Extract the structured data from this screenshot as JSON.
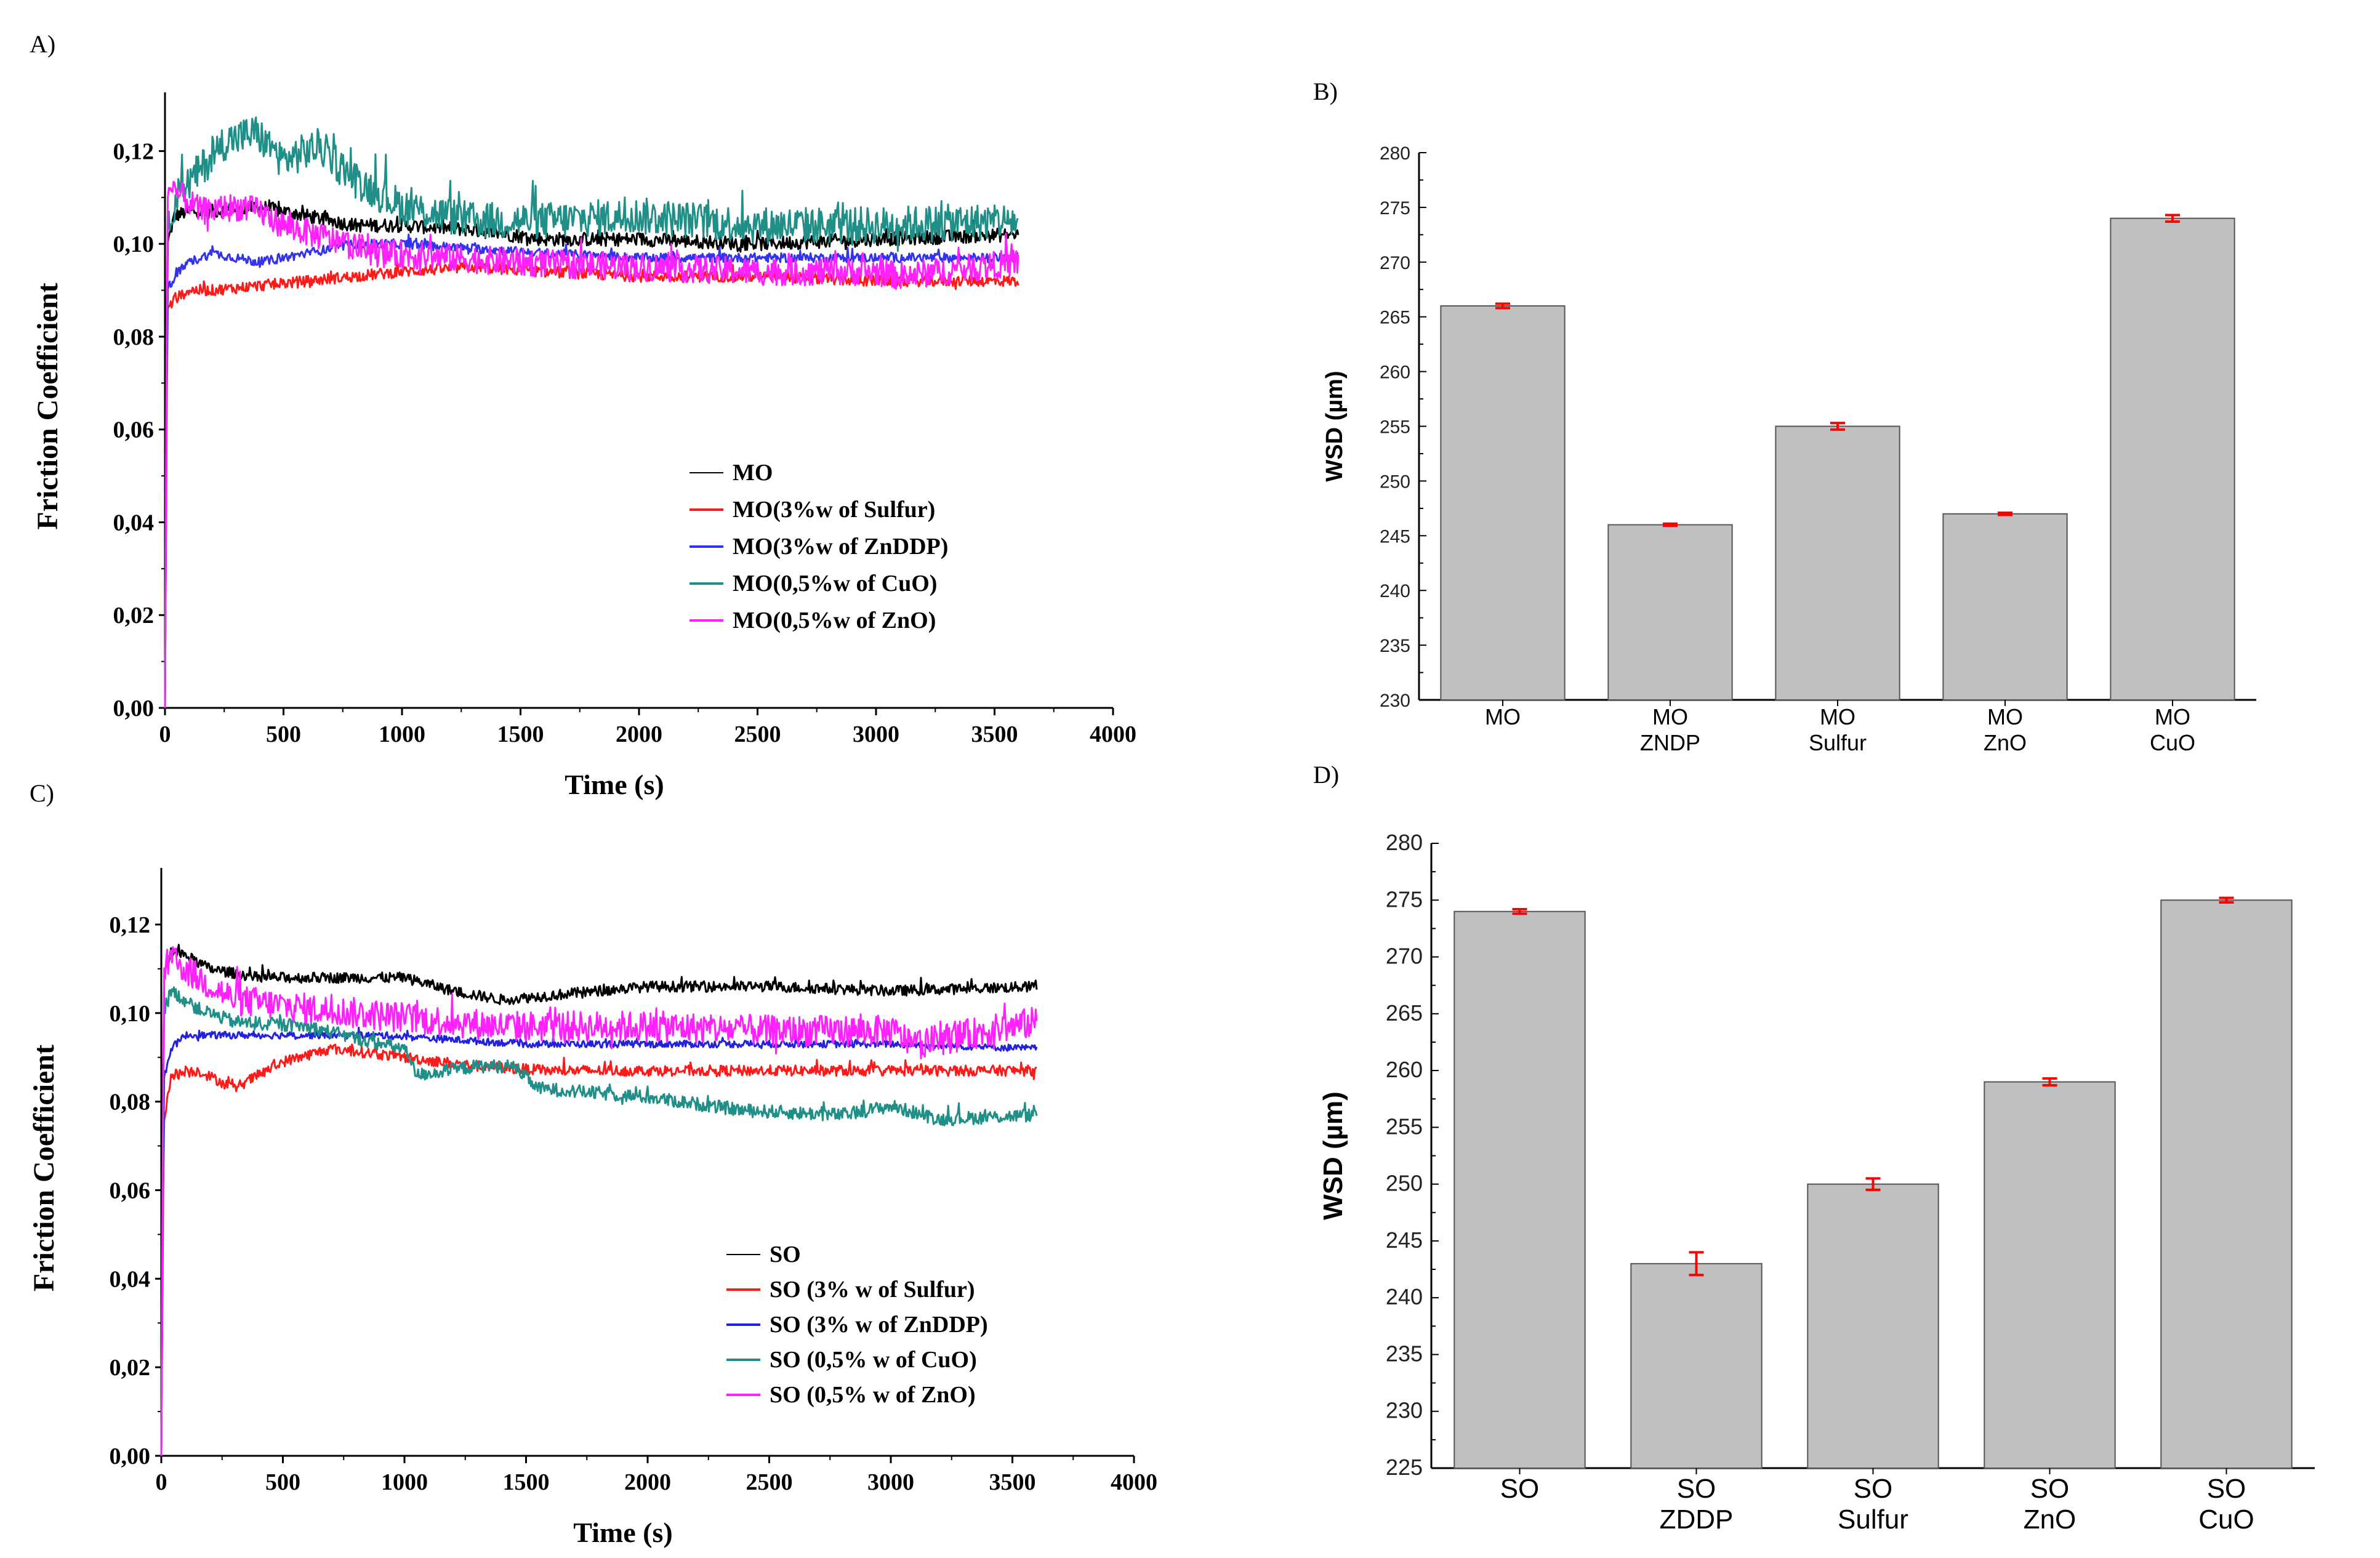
{
  "chart_data": [
    {
      "panel": "A)",
      "type": "line",
      "xlabel": "Time (s)",
      "ylabel": "Friction Coefficient",
      "xlim": [
        0,
        4000
      ],
      "ylim": [
        0,
        0.13
      ],
      "xticks": [
        0,
        500,
        1000,
        1500,
        2000,
        2500,
        3000,
        3500,
        4000
      ],
      "yticks": [
        0,
        0.02,
        0.04,
        0.06,
        0.08,
        0.1,
        0.12
      ],
      "ytick_labels": [
        "0,00",
        "0,02",
        "0,04",
        "0,06",
        "0,08",
        "0,10",
        "0,12"
      ],
      "legend_position": "lower-right",
      "series": [
        {
          "name": "MO",
          "color": "#000000",
          "noise": 0.0015,
          "x": [
            0,
            10,
            40,
            100,
            200,
            400,
            600,
            800,
            1000,
            1300,
            1600,
            2000,
            2500,
            3000,
            3600
          ],
          "y": [
            0.0,
            0.1,
            0.106,
            0.107,
            0.107,
            0.108,
            0.106,
            0.104,
            0.104,
            0.103,
            0.101,
            0.101,
            0.1,
            0.101,
            0.102
          ]
        },
        {
          "name": "MO(3%w of Sulfur)",
          "color": "#ff1a1a",
          "noise": 0.0012,
          "x": [
            0,
            10,
            40,
            100,
            200,
            400,
            600,
            800,
            1000,
            1300,
            1600,
            2000,
            2500,
            3000,
            3600
          ],
          "y": [
            0.0,
            0.086,
            0.088,
            0.09,
            0.09,
            0.091,
            0.092,
            0.093,
            0.094,
            0.095,
            0.094,
            0.093,
            0.093,
            0.092,
            0.092
          ]
        },
        {
          "name": "MO(3%w of ZnDDP)",
          "color": "#3333ee",
          "noise": 0.001,
          "x": [
            0,
            10,
            40,
            100,
            200,
            300,
            400,
            600,
            800,
            1000,
            1300,
            1600,
            2000,
            2500,
            3000,
            3600
          ],
          "y": [
            0.0,
            0.09,
            0.093,
            0.096,
            0.098,
            0.097,
            0.096,
            0.098,
            0.1,
            0.1,
            0.099,
            0.098,
            0.097,
            0.097,
            0.097,
            0.097
          ]
        },
        {
          "name": "MO(0,5%w of CuO)",
          "color": "#1f8f88",
          "noise": 0.004,
          "x": [
            0,
            10,
            50,
            150,
            250,
            380,
            500,
            650,
            800,
            1000,
            1300,
            1600,
            2000,
            2500,
            3000,
            3600
          ],
          "y": [
            0.0,
            0.105,
            0.11,
            0.116,
            0.122,
            0.124,
            0.118,
            0.121,
            0.114,
            0.108,
            0.105,
            0.105,
            0.106,
            0.104,
            0.104,
            0.105
          ]
        },
        {
          "name": "MO(0,5%w of ZnO)",
          "color": "#ff22ff",
          "noise": 0.003,
          "x": [
            0,
            10,
            50,
            150,
            300,
            400,
            500,
            700,
            900,
            1200,
            1500,
            2000,
            2500,
            3000,
            3100,
            3600
          ],
          "y": [
            0.0,
            0.11,
            0.111,
            0.107,
            0.108,
            0.107,
            0.104,
            0.101,
            0.098,
            0.097,
            0.096,
            0.095,
            0.094,
            0.094,
            0.093,
            0.096
          ]
        }
      ]
    },
    {
      "panel": "B)",
      "type": "bar",
      "ylabel": "WSD (µm)",
      "ylim": [
        230,
        280
      ],
      "yticks": [
        230,
        235,
        240,
        245,
        250,
        255,
        260,
        265,
        270,
        275,
        280
      ],
      "categories": [
        [
          "MO"
        ],
        [
          "MO",
          "ZNDP"
        ],
        [
          "MO",
          "Sulfur"
        ],
        [
          "MO",
          "ZnO"
        ],
        [
          "MO",
          "CuO"
        ]
      ],
      "values": [
        266,
        246,
        255,
        247,
        274
      ],
      "errors": [
        0.2,
        0.1,
        0.3,
        0.1,
        0.3
      ],
      "bar_color": "#c0c0c0",
      "error_color": "#ff0000"
    },
    {
      "panel": "C)",
      "type": "line",
      "xlabel": "Time (s)",
      "ylabel": "Friction Coefficient",
      "xlim": [
        0,
        4000
      ],
      "ylim": [
        0,
        0.13
      ],
      "xticks": [
        0,
        500,
        1000,
        1500,
        2000,
        2500,
        3000,
        3500,
        4000
      ],
      "yticks": [
        0,
        0.02,
        0.04,
        0.06,
        0.08,
        0.1,
        0.12
      ],
      "ytick_labels": [
        "0,00",
        "0,02",
        "0,04",
        "0,06",
        "0,08",
        "0,10",
        "0,12"
      ],
      "legend_position": "lower-right",
      "series": [
        {
          "name": "SO",
          "color": "#000000",
          "noise": 0.0012,
          "x": [
            0,
            10,
            40,
            100,
            200,
            400,
            700,
            1000,
            1200,
            1400,
            1600,
            2000,
            2500,
            3000,
            3600
          ],
          "y": [
            0.0,
            0.108,
            0.114,
            0.113,
            0.11,
            0.108,
            0.108,
            0.108,
            0.105,
            0.103,
            0.104,
            0.106,
            0.106,
            0.105,
            0.106
          ]
        },
        {
          "name": "SO (3% w of Sulfur)",
          "color": "#ff1a1a",
          "noise": 0.0012,
          "x": [
            0,
            10,
            40,
            150,
            300,
            500,
            700,
            1000,
            1300,
            1600,
            2000,
            2500,
            3000,
            3600
          ],
          "y": [
            0.0,
            0.075,
            0.086,
            0.087,
            0.083,
            0.089,
            0.092,
            0.09,
            0.088,
            0.087,
            0.087,
            0.087,
            0.087,
            0.087
          ]
        },
        {
          "name": "SO (3% w of ZnDDP)",
          "color": "#2222dd",
          "noise": 0.0008,
          "x": [
            0,
            10,
            40,
            100,
            300,
            600,
            900,
            1200,
            1500,
            2000,
            2500,
            3000,
            3600
          ],
          "y": [
            0.0,
            0.085,
            0.092,
            0.095,
            0.095,
            0.095,
            0.095,
            0.094,
            0.093,
            0.093,
            0.093,
            0.093,
            0.092
          ]
        },
        {
          "name": "SO (0,5% w of CuO)",
          "color": "#1f8f88",
          "noise": 0.0015,
          "x": [
            0,
            10,
            40,
            150,
            300,
            600,
            900,
            1000,
            1050,
            1300,
            1450,
            1550,
            2000,
            2400,
            2800,
            3000,
            3200,
            3600
          ],
          "y": [
            0.0,
            0.1,
            0.105,
            0.101,
            0.098,
            0.097,
            0.093,
            0.092,
            0.086,
            0.088,
            0.088,
            0.083,
            0.081,
            0.078,
            0.077,
            0.079,
            0.076,
            0.077
          ]
        },
        {
          "name": "SO (0,5% w of ZnO)",
          "color": "#ff22ff",
          "noise": 0.0035,
          "x": [
            0,
            10,
            40,
            150,
            300,
            600,
            800,
            1000,
            1400,
            2000,
            2500,
            3000,
            3100,
            3600
          ],
          "y": [
            0.0,
            0.11,
            0.112,
            0.108,
            0.103,
            0.101,
            0.1,
            0.099,
            0.097,
            0.097,
            0.096,
            0.096,
            0.093,
            0.098
          ]
        }
      ]
    },
    {
      "panel": "D)",
      "type": "bar",
      "ylabel": "WSD (µm)",
      "ylim": [
        225,
        280
      ],
      "yticks": [
        225,
        230,
        235,
        240,
        245,
        250,
        255,
        260,
        265,
        270,
        275,
        280
      ],
      "categories": [
        [
          "SO"
        ],
        [
          "SO",
          "ZDDP"
        ],
        [
          "SO",
          "Sulfur"
        ],
        [
          "SO",
          "ZnO"
        ],
        [
          "SO",
          "CuO"
        ]
      ],
      "values": [
        274,
        243,
        250,
        259,
        275
      ],
      "errors": [
        0.2,
        1.0,
        0.5,
        0.3,
        0.2
      ],
      "bar_color": "#c0c0c0",
      "error_color": "#ff0000"
    }
  ]
}
